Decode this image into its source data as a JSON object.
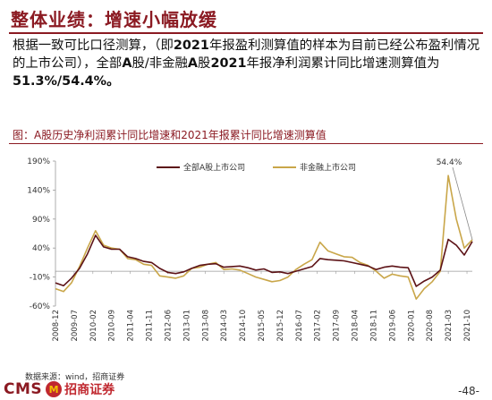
{
  "slide": {
    "title": "整体业绩：增速小幅放缓",
    "body_prefix": "根据一致可比口径测算，（即",
    "body_year": "2021",
    "body_mid": "年报盈利测算值的样本为目前已经公布盈利情况的上市公司），全部",
    "body_a": "A",
    "body_mid2": "股/非金融",
    "body_a2": "A",
    "body_mid3": "股",
    "body_year2": "2021",
    "body_suffix": "年报净利润累计同比增速测算值为",
    "body_values": "51.3%/54.4%。",
    "figure_caption": "图：A股历史净利润累计同比增速和2021年报累计同比增速测算值",
    "source": "数据来源：wind，招商证券",
    "logo_text": "CMS",
    "logo_badge": "M",
    "logo_cn": "招商证券",
    "page_number": "-48-"
  },
  "chart_data": {
    "type": "line",
    "title": "",
    "xlabel": "",
    "ylabel": "",
    "ylim": [
      -60,
      190
    ],
    "yticks": [
      -60,
      -10,
      40,
      90,
      140,
      190
    ],
    "ytick_labels": [
      "-60%",
      "-10%",
      "40%",
      "90%",
      "140%",
      "190%"
    ],
    "x_tick_labels": [
      "2008-12",
      "2009-07",
      "2010-02",
      "2010-09",
      "2011-04",
      "2011-11",
      "2012-06",
      "2013-01",
      "2013-08",
      "2014-03",
      "2014-10",
      "2015-05",
      "2015-12",
      "2016-07",
      "2017-02",
      "2017-09",
      "2018-04",
      "2018-11",
      "2019-06",
      "2020-01",
      "2020-08",
      "2021-03",
      "2021-10"
    ],
    "grid": false,
    "legend_position": "top",
    "annotation": {
      "text": "54.4%",
      "x": "2021-12",
      "y": 54.4
    },
    "series": [
      {
        "name": "全部A股上市公司",
        "color": "#5c1216",
        "points": [
          [
            "2008-12",
            -20
          ],
          [
            "2009-03",
            -25
          ],
          [
            "2009-06",
            -12
          ],
          [
            "2009-09",
            5
          ],
          [
            "2009-12",
            30
          ],
          [
            "2010-03",
            62
          ],
          [
            "2010-06",
            42
          ],
          [
            "2010-09",
            38
          ],
          [
            "2010-12",
            38
          ],
          [
            "2011-03",
            25
          ],
          [
            "2011-06",
            22
          ],
          [
            "2011-09",
            17
          ],
          [
            "2011-12",
            15
          ],
          [
            "2012-03",
            5
          ],
          [
            "2012-06",
            -2
          ],
          [
            "2012-09",
            -4
          ],
          [
            "2012-12",
            -1
          ],
          [
            "2013-03",
            5
          ],
          [
            "2013-06",
            10
          ],
          [
            "2013-09",
            12
          ],
          [
            "2013-12",
            13
          ],
          [
            "2014-03",
            7
          ],
          [
            "2014-06",
            8
          ],
          [
            "2014-09",
            9
          ],
          [
            "2014-12",
            6
          ],
          [
            "2015-03",
            2
          ],
          [
            "2015-06",
            4
          ],
          [
            "2015-09",
            -2
          ],
          [
            "2015-12",
            -1
          ],
          [
            "2016-03",
            -4
          ],
          [
            "2016-06",
            0
          ],
          [
            "2016-09",
            4
          ],
          [
            "2016-12",
            8
          ],
          [
            "2017-03",
            22
          ],
          [
            "2017-06",
            20
          ],
          [
            "2017-09",
            19
          ],
          [
            "2017-12",
            18
          ],
          [
            "2018-03",
            15
          ],
          [
            "2018-06",
            12
          ],
          [
            "2018-09",
            9
          ],
          [
            "2018-12",
            3
          ],
          [
            "2019-03",
            7
          ],
          [
            "2019-06",
            9
          ],
          [
            "2019-09",
            7
          ],
          [
            "2019-12",
            6
          ],
          [
            "2020-03",
            -26
          ],
          [
            "2020-06",
            -17
          ],
          [
            "2020-09",
            -10
          ],
          [
            "2020-12",
            2
          ],
          [
            "2021-03",
            55
          ],
          [
            "2021-06",
            45
          ],
          [
            "2021-09",
            28
          ],
          [
            "2021-12",
            51.3
          ]
        ]
      },
      {
        "name": "非金融上市公司",
        "color": "#c9a649",
        "points": [
          [
            "2008-12",
            -30
          ],
          [
            "2009-03",
            -35
          ],
          [
            "2009-06",
            -20
          ],
          [
            "2009-09",
            8
          ],
          [
            "2009-12",
            40
          ],
          [
            "2010-03",
            70
          ],
          [
            "2010-06",
            45
          ],
          [
            "2010-09",
            40
          ],
          [
            "2010-12",
            38
          ],
          [
            "2011-03",
            22
          ],
          [
            "2011-06",
            20
          ],
          [
            "2011-09",
            12
          ],
          [
            "2011-12",
            10
          ],
          [
            "2012-03",
            -8
          ],
          [
            "2012-06",
            -10
          ],
          [
            "2012-09",
            -12
          ],
          [
            "2012-12",
            -8
          ],
          [
            "2013-03",
            5
          ],
          [
            "2013-06",
            7
          ],
          [
            "2013-09",
            12
          ],
          [
            "2013-12",
            15
          ],
          [
            "2014-03",
            3
          ],
          [
            "2014-06",
            4
          ],
          [
            "2014-09",
            2
          ],
          [
            "2014-12",
            -4
          ],
          [
            "2015-03",
            -10
          ],
          [
            "2015-06",
            -14
          ],
          [
            "2015-09",
            -18
          ],
          [
            "2015-12",
            -16
          ],
          [
            "2016-03",
            -10
          ],
          [
            "2016-06",
            3
          ],
          [
            "2016-09",
            12
          ],
          [
            "2016-12",
            20
          ],
          [
            "2017-03",
            50
          ],
          [
            "2017-06",
            35
          ],
          [
            "2017-09",
            30
          ],
          [
            "2017-12",
            25
          ],
          [
            "2018-03",
            24
          ],
          [
            "2018-06",
            15
          ],
          [
            "2018-09",
            10
          ],
          [
            "2018-12",
            0
          ],
          [
            "2019-03",
            -12
          ],
          [
            "2019-06",
            -5
          ],
          [
            "2019-09",
            -8
          ],
          [
            "2019-12",
            -10
          ],
          [
            "2020-03",
            -48
          ],
          [
            "2020-06",
            -30
          ],
          [
            "2020-09",
            -18
          ],
          [
            "2020-12",
            0
          ],
          [
            "2021-03",
            165
          ],
          [
            "2021-06",
            90
          ],
          [
            "2021-09",
            40
          ],
          [
            "2021-12",
            54.4
          ]
        ]
      }
    ]
  }
}
